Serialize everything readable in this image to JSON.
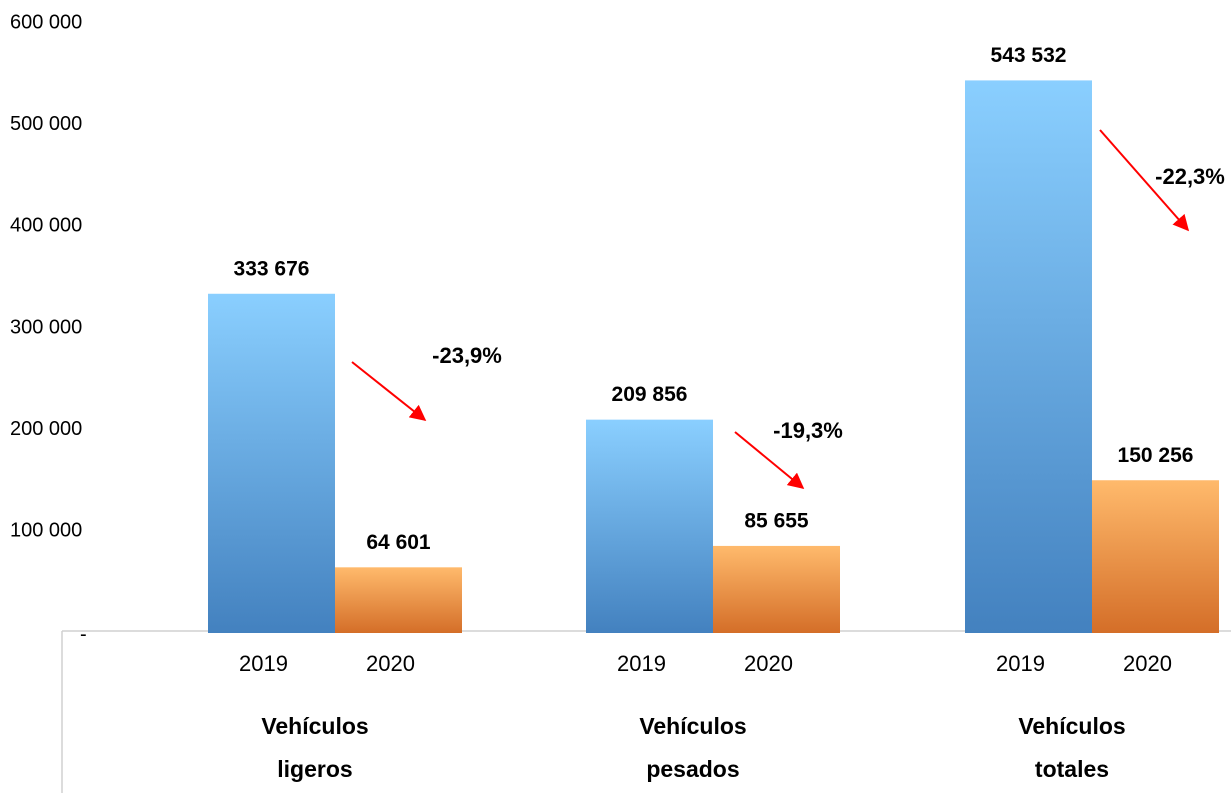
{
  "chart_data": {
    "type": "bar",
    "categories": [
      "Vehículos ligeros",
      "Vehículos pesados",
      "Vehículos totales"
    ],
    "series": [
      {
        "name": "2019",
        "color": "#4a8fd4",
        "values": [
          333676,
          209856,
          543532
        ],
        "value_labels": [
          "333 676",
          "209 856",
          "543 532"
        ]
      },
      {
        "name": "2020",
        "color": "#ec7a2c",
        "values": [
          64601,
          85655,
          150256
        ],
        "value_labels": [
          "64 601",
          "85 655",
          "150 256"
        ]
      }
    ],
    "annotations": [
      "-23,9%",
      "-19,3%",
      "-22,3%"
    ],
    "annotation_color": "#ff0000",
    "ylim": [
      0,
      600000
    ],
    "yticks": [
      {
        "value": 0,
        "label": "-"
      },
      {
        "value": 100000,
        "label": "100 000"
      },
      {
        "value": 200000,
        "label": "200 000"
      },
      {
        "value": 300000,
        "label": "300 000"
      },
      {
        "value": 400000,
        "label": "400 000"
      },
      {
        "value": 500000,
        "label": "500 000"
      },
      {
        "value": 600000,
        "label": "600 000"
      }
    ],
    "grid": false
  }
}
